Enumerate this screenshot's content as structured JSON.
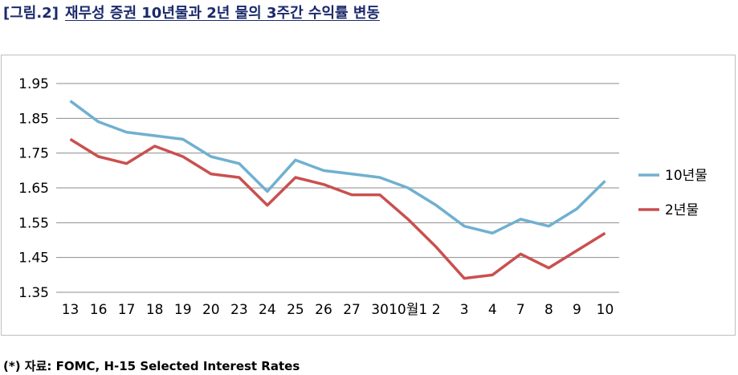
{
  "figure": {
    "label": "[그림.2]",
    "title": "재무성 증권 10년물과 2년 물의 3주간 수익률 변동",
    "source": "(*) 자료: FOMC, H-15 Selected Interest Rates"
  },
  "chart_data": {
    "type": "line",
    "categories": [
      "13",
      "16",
      "17",
      "18",
      "19",
      "20",
      "23",
      "24",
      "25",
      "26",
      "27",
      "30",
      "10월1",
      "2",
      "3",
      "4",
      "7",
      "8",
      "9",
      "10"
    ],
    "series": [
      {
        "name": "10년물",
        "color": "#70b0d0",
        "values": [
          1.9,
          1.84,
          1.81,
          1.8,
          1.79,
          1.74,
          1.72,
          1.64,
          1.73,
          1.7,
          1.69,
          1.68,
          1.65,
          1.6,
          1.54,
          1.52,
          1.56,
          1.54,
          1.59,
          1.67
        ]
      },
      {
        "name": "2년물",
        "color": "#c9504f",
        "values": [
          1.79,
          1.74,
          1.72,
          1.77,
          1.74,
          1.69,
          1.68,
          1.6,
          1.68,
          1.66,
          1.63,
          1.63,
          1.56,
          1.48,
          1.39,
          1.4,
          1.46,
          1.42,
          1.47,
          1.52
        ]
      }
    ],
    "yticks": [
      "1.95",
      "1.85",
      "1.75",
      "1.65",
      "1.55",
      "1.45",
      "1.35"
    ],
    "ylim": [
      1.35,
      1.95
    ],
    "grid": true,
    "legend": "right"
  }
}
